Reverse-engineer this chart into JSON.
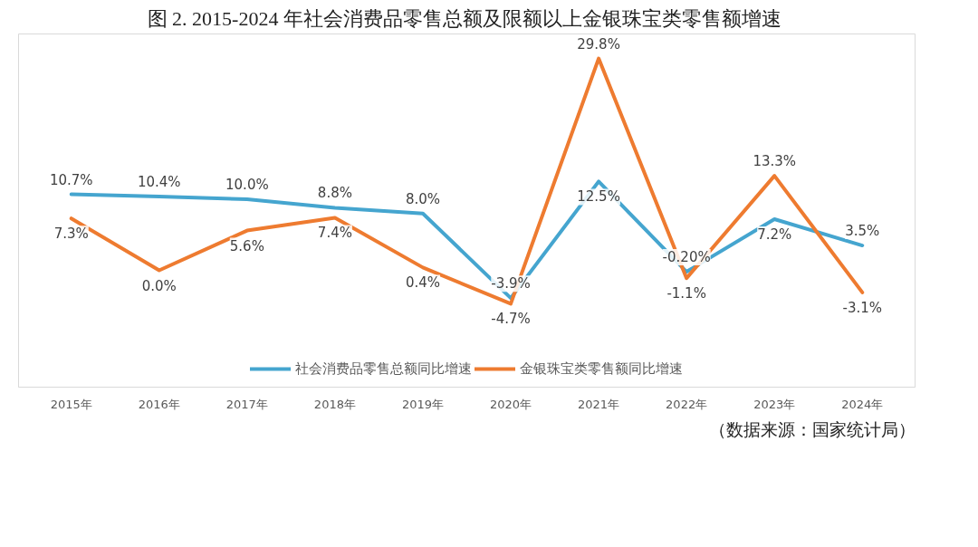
{
  "chart_data": {
    "type": "line",
    "title": "图 2.  2015-2024 年社会消费品零售总额及限额以上金银珠宝类零售额增速",
    "categories": [
      "2015年",
      "2016年",
      "2017年",
      "2018年",
      "2019年",
      "2020年",
      "2021年",
      "2022年",
      "2023年",
      "2024年"
    ],
    "series": [
      {
        "name": "社会消费品零售总额同比增速",
        "color": "#45a5cf",
        "values": [
          10.7,
          10.4,
          10.0,
          8.8,
          8.0,
          -3.9,
          12.5,
          -0.2,
          7.2,
          3.5
        ],
        "value_labels": [
          "10.7%",
          "10.4%",
          "10.0%",
          "8.8%",
          "8.0%",
          "-3.9%",
          "12.5%",
          "-0.20%",
          "7.2%",
          "3.5%"
        ]
      },
      {
        "name": "金银珠宝类零售额同比增速",
        "color": "#ee7b30",
        "values": [
          7.3,
          0.0,
          5.6,
          7.4,
          0.4,
          -4.7,
          29.8,
          -1.1,
          13.3,
          -3.1
        ],
        "value_labels": [
          "7.3%",
          "0.0%",
          "5.6%",
          "7.4%",
          "0.4%",
          "-4.7%",
          "29.8%",
          "-1.1%",
          "13.3%",
          "-3.1%"
        ]
      }
    ],
    "legend": "bottom",
    "grid": false,
    "line_style": "solid",
    "annotations": [
      "（数据来源：国家统计局）"
    ]
  }
}
